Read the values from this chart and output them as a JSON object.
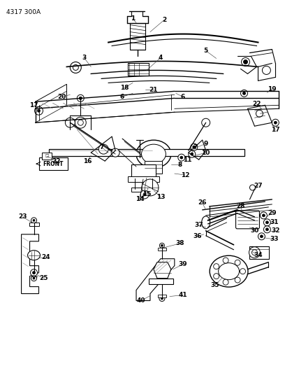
{
  "title": "4317 300A",
  "bg_color": "#ffffff",
  "lc": "#000000",
  "fig_w": 4.08,
  "fig_h": 5.33,
  "dpi": 100,
  "gray": "#888888",
  "dgray": "#555555"
}
